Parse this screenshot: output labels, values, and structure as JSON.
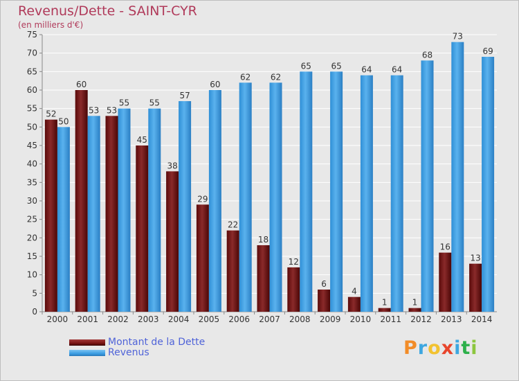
{
  "header": {
    "title": "Revenus/Dette - SAINT-CYR",
    "subtitle": "(en milliers d'€)"
  },
  "legend": [
    {
      "label": "Montant de la Dette",
      "color": "#7a1414"
    },
    {
      "label": "Revenus",
      "color": "#3b9de3"
    }
  ],
  "logo": {
    "letters": [
      "P",
      "r",
      "o",
      "x",
      "i",
      "t",
      "i"
    ],
    "colors": [
      "#f28c28",
      "#3ea7e0",
      "#f2c230",
      "#e8452c",
      "#3ea7e0",
      "#2db04b",
      "#8cc63e"
    ]
  },
  "chart_data": {
    "type": "bar",
    "title": "Revenus/Dette - SAINT-CYR",
    "ylabel": "(en milliers d'€)",
    "xlabel": "",
    "categories": [
      "2000",
      "2001",
      "2002",
      "2003",
      "2004",
      "2005",
      "2006",
      "2007",
      "2008",
      "2009",
      "2010",
      "2011",
      "2012",
      "2013",
      "2014"
    ],
    "series": [
      {
        "name": "Montant de la Dette",
        "values": [
          52,
          60,
          53,
          45,
          38,
          29,
          22,
          18,
          12,
          6,
          4,
          1,
          1,
          16,
          13
        ]
      },
      {
        "name": "Revenus",
        "values": [
          50,
          53,
          55,
          55,
          57,
          60,
          62,
          62,
          65,
          65,
          64,
          64,
          68,
          73,
          69
        ]
      }
    ],
    "ylim": [
      0,
      75
    ],
    "yticks": [
      0,
      5,
      10,
      15,
      20,
      25,
      30,
      35,
      40,
      45,
      50,
      55,
      60,
      65,
      70,
      75
    ],
    "grid": true,
    "legend_position": "bottom-left"
  }
}
